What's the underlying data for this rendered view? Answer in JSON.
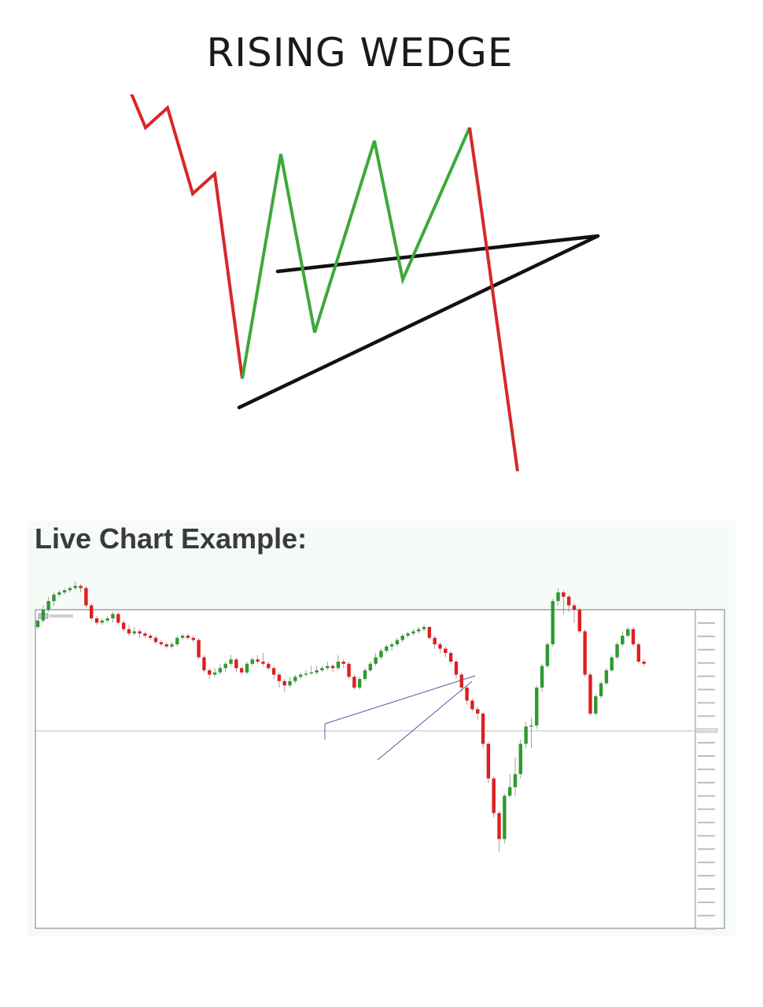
{
  "title": "RISING WEDGE",
  "live_heading": "Live Chart Example:",
  "colors": {
    "decline": "#d62828",
    "wedge_swing": "#3ea83a",
    "wedge_line": "#111111",
    "bull_candle": "#2e9a2e",
    "bear_candle": "#e01e1e",
    "trendline": "#5a5aa8"
  },
  "chart_data": [
    {
      "type": "line",
      "series": [
        {
          "values": [
            100,
            84,
            90,
            64,
            70,
            8
          ]
        },
        {
          "values": [
            8,
            76,
            22,
            80,
            38,
            84,
            66,
            -20
          ]
        }
      ]
    },
    {
      "type": "candlestick",
      "candles": [
        {
          "o": 48,
          "c": 51,
          "h": 52,
          "l": 47
        },
        {
          "o": 51,
          "c": 56,
          "h": 58,
          "l": 50
        },
        {
          "o": 56,
          "c": 60,
          "h": 62,
          "l": 55
        },
        {
          "o": 60,
          "c": 63,
          "h": 64,
          "l": 58
        },
        {
          "o": 63,
          "c": 64,
          "h": 65,
          "l": 62
        },
        {
          "o": 64,
          "c": 65,
          "h": 66,
          "l": 63
        },
        {
          "o": 65,
          "c": 66,
          "h": 67,
          "l": 64
        },
        {
          "o": 66,
          "c": 67,
          "h": 69,
          "l": 65
        },
        {
          "o": 67,
          "c": 66,
          "h": 68,
          "l": 64
        },
        {
          "o": 66,
          "c": 58,
          "h": 67,
          "l": 57
        },
        {
          "o": 58,
          "c": 52,
          "h": 59,
          "l": 51
        },
        {
          "o": 52,
          "c": 50,
          "h": 53,
          "l": 49
        },
        {
          "o": 50,
          "c": 51,
          "h": 52,
          "l": 49
        },
        {
          "o": 51,
          "c": 52,
          "h": 53,
          "l": 50
        },
        {
          "o": 52,
          "c": 54,
          "h": 55,
          "l": 50
        },
        {
          "o": 54,
          "c": 50,
          "h": 55,
          "l": 49
        },
        {
          "o": 50,
          "c": 47,
          "h": 51,
          "l": 46
        },
        {
          "o": 47,
          "c": 45,
          "h": 49,
          "l": 44
        },
        {
          "o": 45,
          "c": 46,
          "h": 48,
          "l": 44
        },
        {
          "o": 46,
          "c": 45,
          "h": 47,
          "l": 43
        },
        {
          "o": 45,
          "c": 44,
          "h": 46,
          "l": 43
        },
        {
          "o": 44,
          "c": 43,
          "h": 45,
          "l": 42
        },
        {
          "o": 43,
          "c": 41,
          "h": 44,
          "l": 40
        },
        {
          "o": 41,
          "c": 40,
          "h": 42,
          "l": 39
        },
        {
          "o": 40,
          "c": 39,
          "h": 41,
          "l": 38
        },
        {
          "o": 39,
          "c": 40,
          "h": 41,
          "l": 38
        },
        {
          "o": 40,
          "c": 43,
          "h": 44,
          "l": 39
        },
        {
          "o": 43,
          "c": 44,
          "h": 45,
          "l": 42
        },
        {
          "o": 44,
          "c": 43,
          "h": 45,
          "l": 42
        },
        {
          "o": 43,
          "c": 42,
          "h": 44,
          "l": 41
        },
        {
          "o": 42,
          "c": 34,
          "h": 43,
          "l": 33
        },
        {
          "o": 34,
          "c": 28,
          "h": 35,
          "l": 27
        },
        {
          "o": 28,
          "c": 26,
          "h": 29,
          "l": 24
        },
        {
          "o": 26,
          "c": 27,
          "h": 29,
          "l": 25
        },
        {
          "o": 27,
          "c": 29,
          "h": 31,
          "l": 26
        },
        {
          "o": 29,
          "c": 31,
          "h": 32,
          "l": 27
        },
        {
          "o": 31,
          "c": 33,
          "h": 35,
          "l": 30
        },
        {
          "o": 33,
          "c": 29,
          "h": 34,
          "l": 27
        },
        {
          "o": 29,
          "c": 27,
          "h": 30,
          "l": 26
        },
        {
          "o": 27,
          "c": 31,
          "h": 32,
          "l": 26
        },
        {
          "o": 31,
          "c": 33,
          "h": 34,
          "l": 30
        },
        {
          "o": 33,
          "c": 32,
          "h": 35,
          "l": 31
        },
        {
          "o": 32,
          "c": 31,
          "h": 36,
          "l": 30
        },
        {
          "o": 31,
          "c": 29,
          "h": 32,
          "l": 28
        },
        {
          "o": 29,
          "c": 26,
          "h": 30,
          "l": 24
        },
        {
          "o": 26,
          "c": 23,
          "h": 27,
          "l": 20
        },
        {
          "o": 23,
          "c": 21,
          "h": 24,
          "l": 18
        },
        {
          "o": 21,
          "c": 23,
          "h": 25,
          "l": 20
        },
        {
          "o": 23,
          "c": 25,
          "h": 26,
          "l": 22
        },
        {
          "o": 25,
          "c": 26,
          "h": 27,
          "l": 24
        },
        {
          "o": 26,
          "c": 26.5,
          "h": 28,
          "l": 25
        },
        {
          "o": 26.5,
          "c": 27,
          "h": 30,
          "l": 26
        },
        {
          "o": 27,
          "c": 28,
          "h": 30,
          "l": 26
        },
        {
          "o": 28,
          "c": 29,
          "h": 30,
          "l": 27
        },
        {
          "o": 29,
          "c": 30,
          "h": 32,
          "l": 28
        },
        {
          "o": 30,
          "c": 29,
          "h": 31,
          "l": 27
        },
        {
          "o": 29,
          "c": 32,
          "h": 35,
          "l": 28
        },
        {
          "o": 32,
          "c": 31,
          "h": 33,
          "l": 29
        },
        {
          "o": 31,
          "c": 25,
          "h": 32,
          "l": 24
        },
        {
          "o": 25,
          "c": 20,
          "h": 26,
          "l": 19
        },
        {
          "o": 20,
          "c": 24,
          "h": 25,
          "l": 19
        },
        {
          "o": 24,
          "c": 28,
          "h": 29,
          "l": 23
        },
        {
          "o": 28,
          "c": 31,
          "h": 32,
          "l": 27
        },
        {
          "o": 31,
          "c": 34,
          "h": 36,
          "l": 30
        },
        {
          "o": 34,
          "c": 37,
          "h": 38,
          "l": 33
        },
        {
          "o": 37,
          "c": 39,
          "h": 40,
          "l": 36
        },
        {
          "o": 39,
          "c": 40,
          "h": 41,
          "l": 37
        },
        {
          "o": 40,
          "c": 42,
          "h": 43,
          "l": 39
        },
        {
          "o": 42,
          "c": 44,
          "h": 45,
          "l": 41
        },
        {
          "o": 44,
          "c": 45,
          "h": 46,
          "l": 43
        },
        {
          "o": 45,
          "c": 46,
          "h": 47,
          "l": 44
        },
        {
          "o": 46,
          "c": 47,
          "h": 48,
          "l": 45
        },
        {
          "o": 47,
          "c": 48,
          "h": 49,
          "l": 46
        },
        {
          "o": 48,
          "c": 43,
          "h": 48.5,
          "l": 42
        },
        {
          "o": 43,
          "c": 40,
          "h": 44,
          "l": 38
        },
        {
          "o": 40,
          "c": 38,
          "h": 41,
          "l": 36
        },
        {
          "o": 38,
          "c": 36,
          "h": 39,
          "l": 34
        },
        {
          "o": 36,
          "c": 32,
          "h": 37,
          "l": 31
        },
        {
          "o": 32,
          "c": 26,
          "h": 33,
          "l": 24
        },
        {
          "o": 26,
          "c": 20,
          "h": 27,
          "l": 18
        },
        {
          "o": 20,
          "c": 14,
          "h": 21,
          "l": 12
        },
        {
          "o": 14,
          "c": 10,
          "h": 15,
          "l": 9
        },
        {
          "o": 10,
          "c": 8,
          "h": 11,
          "l": 5
        },
        {
          "o": 8,
          "c": -6,
          "h": 9,
          "l": -8
        },
        {
          "o": -6,
          "c": -22,
          "h": -5,
          "l": -24
        },
        {
          "o": -22,
          "c": -38,
          "h": -21,
          "l": -40
        },
        {
          "o": -38,
          "c": -50,
          "h": -37,
          "l": -56
        },
        {
          "o": -50,
          "c": -30,
          "h": -29,
          "l": -52
        },
        {
          "o": -30,
          "c": -26,
          "h": -20,
          "l": -31
        },
        {
          "o": -26,
          "c": -20,
          "h": -12,
          "l": -30
        },
        {
          "o": -20,
          "c": -6,
          "h": -4,
          "l": -22
        },
        {
          "o": -6,
          "c": 2,
          "h": 4,
          "l": -8
        },
        {
          "o": 2,
          "c": 2.5,
          "h": 6,
          "l": -8
        },
        {
          "o": 2.5,
          "c": 20,
          "h": 21,
          "l": 1
        },
        {
          "o": 20,
          "c": 30,
          "h": 31,
          "l": 18
        },
        {
          "o": 30,
          "c": 40,
          "h": 41,
          "l": 29
        },
        {
          "o": 40,
          "c": 60,
          "h": 61,
          "l": 39
        },
        {
          "o": 60,
          "c": 64,
          "h": 66,
          "l": 58
        },
        {
          "o": 64,
          "c": 62,
          "h": 65,
          "l": 54
        },
        {
          "o": 62,
          "c": 58,
          "h": 63,
          "l": 55
        },
        {
          "o": 58,
          "c": 56,
          "h": 59,
          "l": 50
        },
        {
          "o": 56,
          "c": 46,
          "h": 57,
          "l": 45
        },
        {
          "o": 46,
          "c": 26,
          "h": 47,
          "l": 25
        },
        {
          "o": 26,
          "c": 8,
          "h": 27,
          "l": 7
        },
        {
          "o": 8,
          "c": 16,
          "h": 17,
          "l": 7
        },
        {
          "o": 16,
          "c": 22,
          "h": 23,
          "l": 15
        },
        {
          "o": 22,
          "c": 28,
          "h": 29,
          "l": 21
        },
        {
          "o": 28,
          "c": 34,
          "h": 35,
          "l": 27
        },
        {
          "o": 34,
          "c": 40,
          "h": 41,
          "l": 33
        },
        {
          "o": 40,
          "c": 44,
          "h": 46,
          "l": 39
        },
        {
          "o": 44,
          "c": 47,
          "h": 48,
          "l": 43
        },
        {
          "o": 47,
          "c": 40,
          "h": 48,
          "l": 39
        },
        {
          "o": 40,
          "c": 32,
          "h": 41,
          "l": 31
        },
        {
          "o": 32,
          "c": 31,
          "h": 33,
          "l": 30
        }
      ]
    }
  ]
}
